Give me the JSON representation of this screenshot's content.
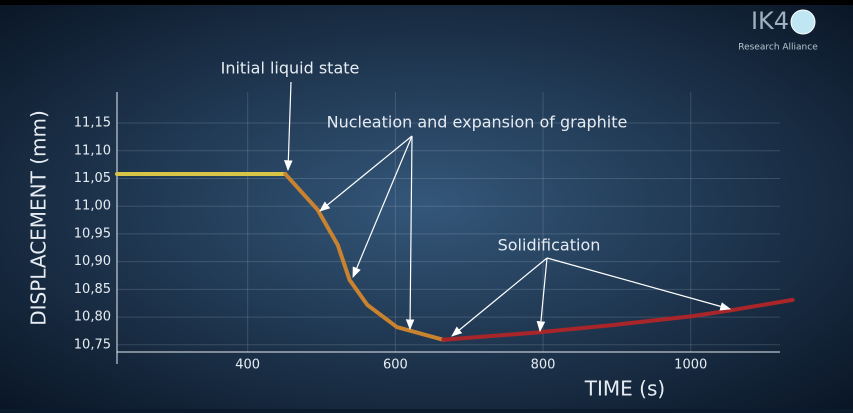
{
  "chart_data": {
    "type": "line",
    "xlabel": "TIME (s)",
    "ylabel": "DISPLACEMENT (mm)",
    "xlim": [
      223,
      1148
    ],
    "ylim": [
      10.737,
      11.206
    ],
    "xticks": [
      400,
      600,
      800,
      1000
    ],
    "yticks": [
      {
        "value": 10.75,
        "label": "10,75"
      },
      {
        "value": 10.8,
        "label": "10,80"
      },
      {
        "value": 10.85,
        "label": "10,85"
      },
      {
        "value": 10.9,
        "label": "10,90"
      },
      {
        "value": 10.95,
        "label": "10,95"
      },
      {
        "value": 11.0,
        "label": "11,00"
      },
      {
        "value": 11.05,
        "label": "11,05"
      },
      {
        "value": 11.1,
        "label": "11,10"
      },
      {
        "value": 11.15,
        "label": "11,15"
      }
    ],
    "grid": true,
    "series": [
      {
        "color": "#d8c547",
        "x": [
          223,
          451
        ],
        "values": [
          11.058,
          11.058
        ]
      },
      {
        "color": "#c9832f",
        "x": [
          451,
          495,
          522,
          538,
          562,
          602,
          665
        ],
        "values": [
          11.058,
          10.993,
          10.93,
          10.867,
          10.822,
          10.782,
          10.759
        ]
      },
      {
        "color": "#a8262a",
        "x": [
          665,
          790,
          897,
          1004,
          1058,
          1138
        ],
        "values": [
          10.759,
          10.772,
          10.786,
          10.802,
          10.813,
          10.831
        ]
      }
    ],
    "annotations": [
      "Initial liquid state",
      "Nucleation and expansion of graphite",
      "Solidification"
    ]
  },
  "logo": {
    "mark": "IK4",
    "tagline": "Research Alliance"
  }
}
